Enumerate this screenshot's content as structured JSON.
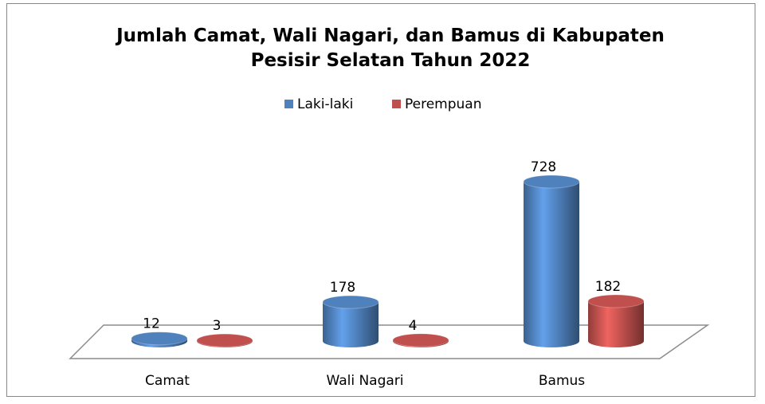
{
  "chart_data": {
    "type": "bar3d",
    "title": "Jumlah Camat, Wali Nagari, dan Bamus di Kabupaten Pesisir Selatan Tahun 2022",
    "categories": [
      "Camat",
      "Wali Nagari",
      "Bamus"
    ],
    "series": [
      {
        "name": "Laki-laki",
        "color": "#4f81bd",
        "values": [
          12,
          178,
          728
        ]
      },
      {
        "name": "Perempuan",
        "color": "#c0504d",
        "values": [
          3,
          4,
          182
        ]
      }
    ],
    "legend": "top"
  }
}
